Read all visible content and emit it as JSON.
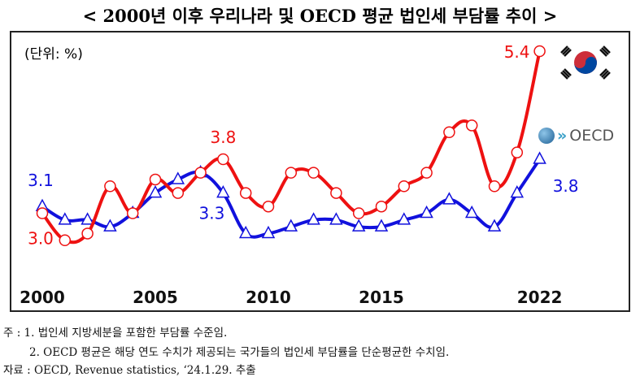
{
  "title": "< 2000년 이후 우리나라 및 OECD 평균 법인세 부담률 추이 >",
  "chart_data": {
    "type": "line",
    "title": "< 2000년 이후 우리나라 및 OECD 평균 법인세 부담률 추이 >",
    "unit_label": "(단위: %)",
    "x": [
      2000,
      2001,
      2002,
      2003,
      2004,
      2005,
      2006,
      2007,
      2008,
      2009,
      2010,
      2011,
      2012,
      2013,
      2014,
      2015,
      2016,
      2017,
      2018,
      2019,
      2020,
      2021,
      2022
    ],
    "x_tick_labels": [
      "2000",
      "2005",
      "2010",
      "2015",
      "2022"
    ],
    "x_ticks": [
      2000,
      2005,
      2010,
      2015,
      2022
    ],
    "y_axis_shown": false,
    "grid": false,
    "series": [
      {
        "marker": "circle",
        "color": "#ee1111",
        "legend_icon": "korea-flag-icon",
        "values": [
          3.0,
          2.6,
          2.7,
          3.4,
          3.0,
          3.5,
          3.3,
          3.6,
          3.8,
          3.3,
          3.1,
          3.6,
          3.6,
          3.3,
          3.0,
          3.1,
          3.4,
          3.6,
          4.2,
          4.3,
          3.4,
          3.9,
          5.4
        ]
      },
      {
        "marker": "triangle",
        "color": "#1111dd",
        "legend_label": "OECD",
        "legend_icon": "oecd-logo-icon",
        "values": [
          3.1,
          2.9,
          2.9,
          2.8,
          3.0,
          3.3,
          3.5,
          3.6,
          3.3,
          2.7,
          2.7,
          2.8,
          2.9,
          2.9,
          2.8,
          2.8,
          2.9,
          3.0,
          3.2,
          3.0,
          2.8,
          3.3,
          3.8
        ]
      }
    ],
    "data_labels": [
      {
        "series": 0,
        "x": 2000,
        "text": "3.0"
      },
      {
        "series": 1,
        "x": 2000,
        "text": "3.1"
      },
      {
        "series": 0,
        "x": 2008,
        "text": "3.8"
      },
      {
        "series": 1,
        "x": 2008,
        "text": "3.3"
      },
      {
        "series": 0,
        "x": 2022,
        "text": "5.4"
      },
      {
        "series": 1,
        "x": 2022,
        "text": "3.8"
      }
    ]
  },
  "notes": [
    "주 : 1. 법인세 지방세분을 포함한 부담률 수준임.",
    "2. OECD 평균은 해당 연도 수치가 제공되는 국가들의 법인세 부담률을 단순평균한 수치임.",
    "자료 : OECD, Revenue statistics, ‘24.1.29. 추출"
  ]
}
